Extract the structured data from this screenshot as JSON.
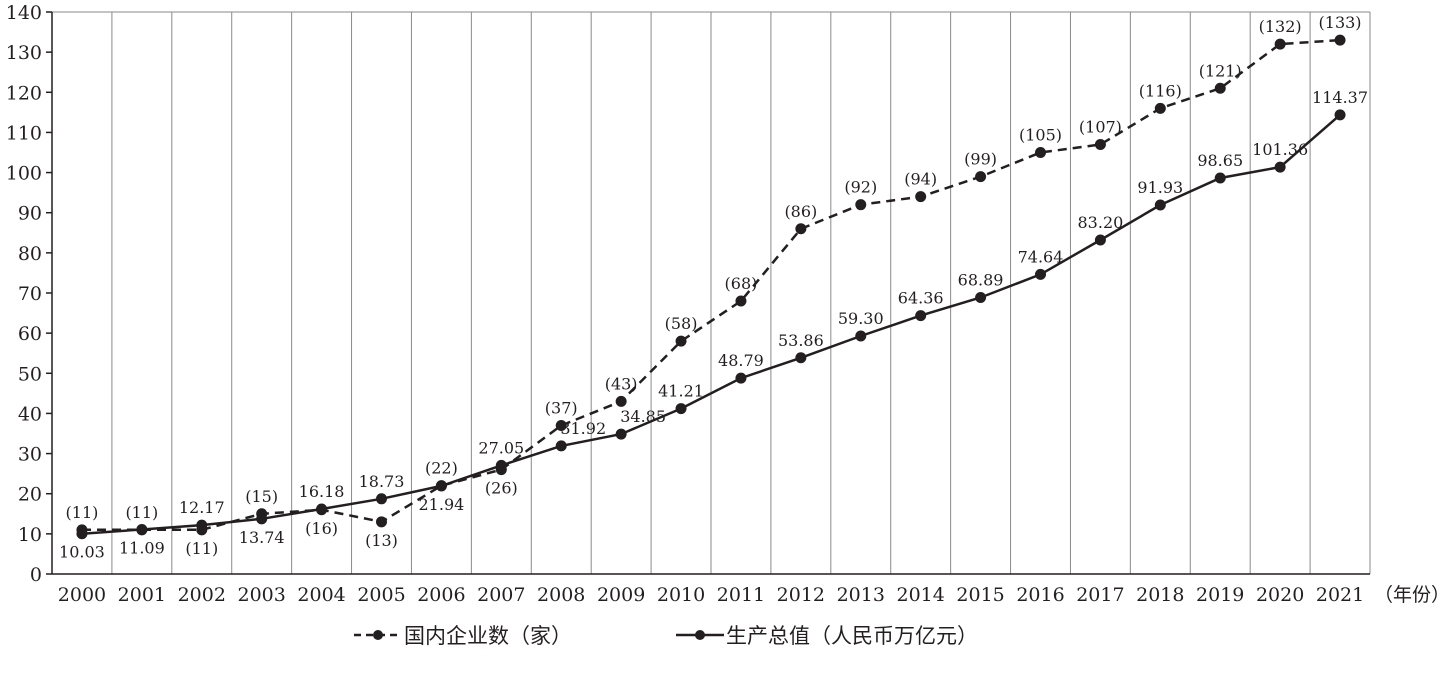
{
  "chart_data": {
    "type": "line",
    "x": [
      "2000",
      "2001",
      "2002",
      "2003",
      "2004",
      "2005",
      "2006",
      "2007",
      "2008",
      "2009",
      "2010",
      "2011",
      "2012",
      "2013",
      "2014",
      "2015",
      "2016",
      "2017",
      "2018",
      "2019",
      "2020",
      "2021"
    ],
    "x_unit_label": "（年份）",
    "ylim": [
      0,
      140
    ],
    "yticks": [
      "0",
      "10",
      "20",
      "30",
      "40",
      "50",
      "60",
      "70",
      "80",
      "90",
      "100",
      "110",
      "120",
      "130",
      "140"
    ],
    "grid": true,
    "legend_position": "bottom-center",
    "series": [
      {
        "name": "国内企业数（家）",
        "style": "dashed",
        "values": [
          11,
          11,
          11,
          15,
          16,
          13,
          22,
          26,
          37,
          43,
          58,
          68,
          86,
          92,
          94,
          99,
          105,
          107,
          116,
          121,
          132,
          133
        ],
        "labels": [
          "(11)",
          "(11)",
          "(11)",
          "(15)",
          "(16)",
          "(13)",
          "(22)",
          "(26)",
          "(37)",
          "(43)",
          "(58)",
          "(68)",
          "(86)",
          "(92)",
          "(94)",
          "(99)",
          "(105)",
          "(107)",
          "(116)",
          "(121)",
          "(132)",
          "(133)"
        ]
      },
      {
        "name": "生产总值（人民币万亿元）",
        "style": "solid",
        "values": [
          10.03,
          11.09,
          12.17,
          13.74,
          16.18,
          18.73,
          21.94,
          27.05,
          31.92,
          34.85,
          41.21,
          48.79,
          53.86,
          59.3,
          64.36,
          68.89,
          74.64,
          83.2,
          91.93,
          98.65,
          101.36,
          114.37
        ],
        "labels": [
          "10.03",
          "11.09",
          "12.17",
          "13.74",
          "16.18",
          "18.73",
          "21.94",
          "27.05",
          "31.92",
          "34.85",
          "41.21",
          "48.79",
          "53.86",
          "59.30",
          "64.36",
          "68.89",
          "74.64",
          "83.20",
          "91.93",
          "98.65",
          "101.36",
          "114.37"
        ]
      }
    ]
  },
  "colors": {
    "line": "#231f20",
    "grid": "#8a8a8a",
    "axis": "#231f20"
  }
}
